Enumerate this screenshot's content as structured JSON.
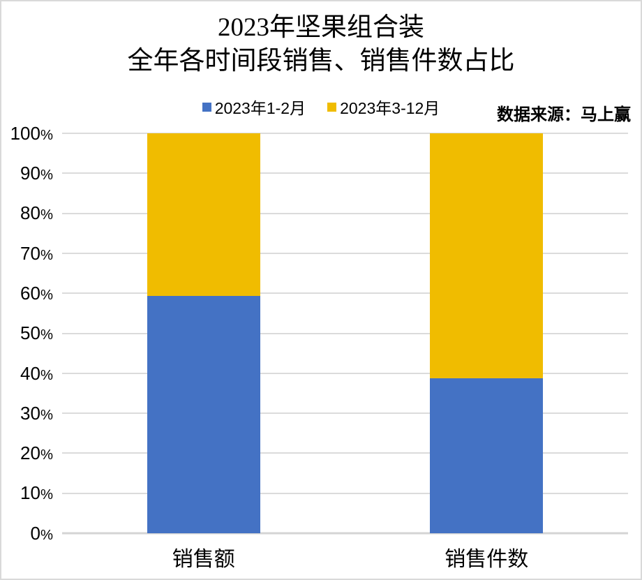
{
  "title": {
    "line1": "2023年坚果组合装",
    "line2": "全年各时间段销售、销售件数占比"
  },
  "source_note": "数据来源：马上赢",
  "chart_data": {
    "type": "bar",
    "stacked": true,
    "orientation": "vertical",
    "title": "2023年坚果组合装 全年各时间段销售、销售件数占比",
    "categories": [
      "销售额",
      "销售件数"
    ],
    "series": [
      {
        "name": "2023年1-2月",
        "color": "#4472C4",
        "values": [
          59.4,
          38.7
        ]
      },
      {
        "name": "2023年3-12月",
        "color": "#F0BC00",
        "values": [
          40.6,
          61.3
        ]
      }
    ],
    "xlabel": "",
    "ylabel": "",
    "ylim": [
      0,
      100
    ],
    "yticks": [
      "0%",
      "10%",
      "20%",
      "30%",
      "40%",
      "50%",
      "60%",
      "70%",
      "80%",
      "90%",
      "100%"
    ],
    "grid": true,
    "legend_position": "top-center",
    "colors": {
      "gridline": "#DBDBDB",
      "axis_line": "#D4D4D4",
      "background": "#FFFFFF",
      "frame_border": "#D9D9D9"
    }
  }
}
